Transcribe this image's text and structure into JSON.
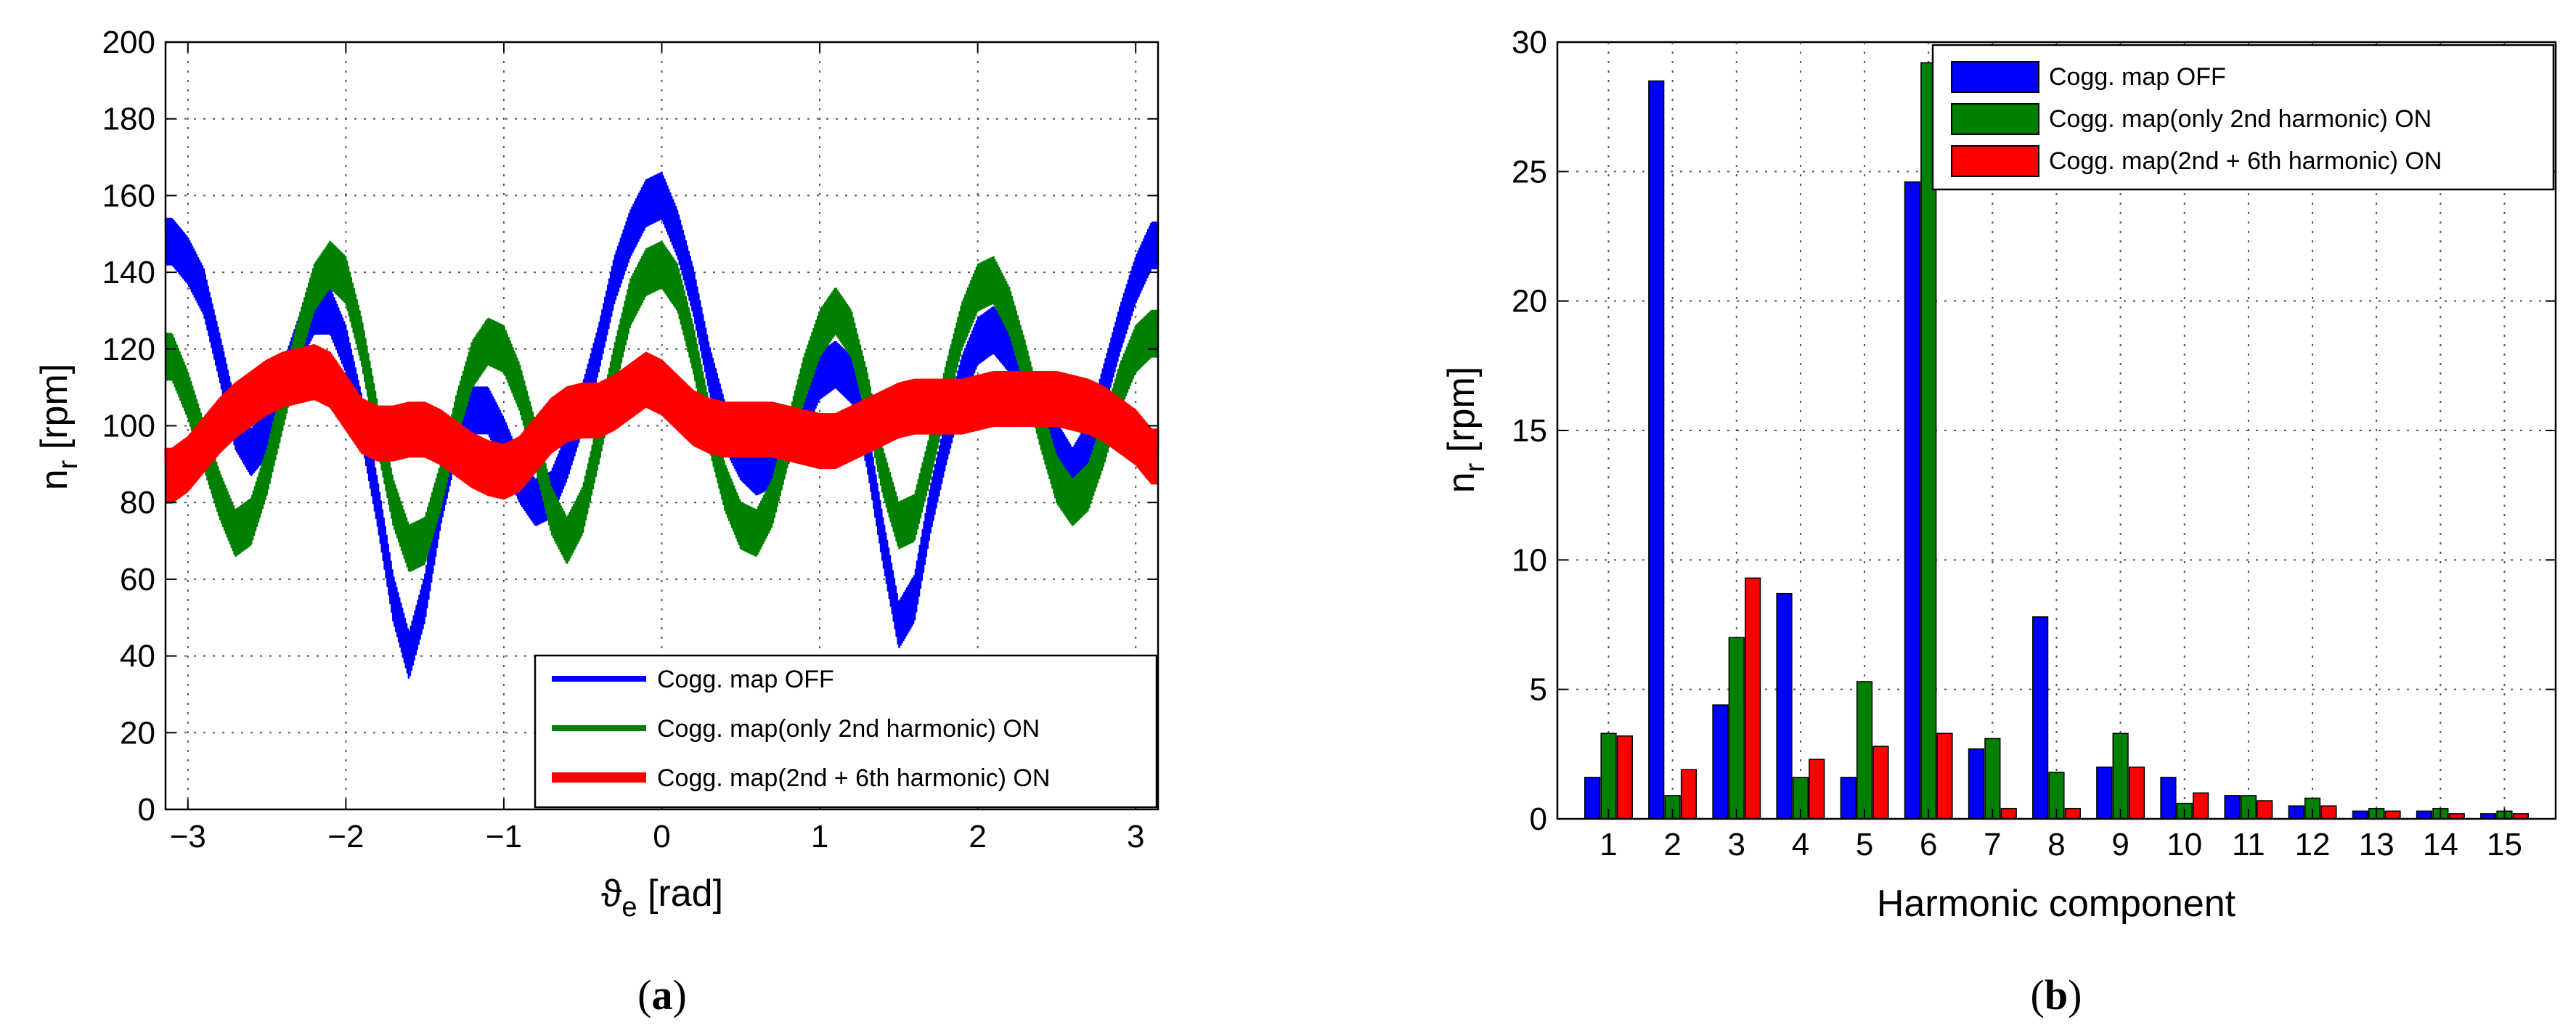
{
  "chart_data": [
    {
      "type": "line",
      "panel": "a",
      "caption": "(a)",
      "caption_letter": "a",
      "xlabel": "ϑe [rad]",
      "xlabel_symbol": "ϑ",
      "xlabel_sub": "e",
      "xlabel_unit": "[rad]",
      "ylabel": "nr [rpm]",
      "ylabel_symbol": "n",
      "ylabel_sub": "r",
      "ylabel_unit": "[rpm]",
      "xlim": [
        -3.14159,
        3.14159
      ],
      "ylim": [
        0,
        200
      ],
      "grid": true,
      "legend_position": "bottom-right",
      "xticks": [
        -3,
        -2,
        -1,
        0,
        1,
        2,
        3
      ],
      "xtick_labels": [
        "−3",
        "−2",
        "−1",
        "0",
        "1",
        "2",
        "3"
      ],
      "yticks": [
        0,
        20,
        40,
        60,
        80,
        100,
        120,
        140,
        160,
        180,
        200
      ],
      "ytick_labels": [
        "0",
        "20",
        "40",
        "60",
        "80",
        "100",
        "120",
        "140",
        "160",
        "180",
        "200"
      ],
      "series": [
        {
          "name": "Cogg. map OFF",
          "color": "#0000ff",
          "band": 12,
          "x": [
            -3.1,
            -3.0,
            -2.9,
            -2.8,
            -2.7,
            -2.6,
            -2.5,
            -2.4,
            -2.3,
            -2.2,
            -2.1,
            -2.0,
            -1.9,
            -1.8,
            -1.7,
            -1.6,
            -1.5,
            -1.4,
            -1.3,
            -1.2,
            -1.1,
            -1.0,
            -0.9,
            -0.8,
            -0.7,
            -0.6,
            -0.5,
            -0.4,
            -0.3,
            -0.2,
            -0.1,
            0.0,
            0.1,
            0.2,
            0.3,
            0.4,
            0.5,
            0.6,
            0.7,
            0.8,
            0.9,
            1.0,
            1.1,
            1.2,
            1.3,
            1.4,
            1.5,
            1.6,
            1.7,
            1.8,
            1.9,
            2.0,
            2.1,
            2.2,
            2.3,
            2.4,
            2.5,
            2.6,
            2.7,
            2.8,
            2.9,
            3.0,
            3.1
          ],
          "y": [
            148,
            143,
            135,
            118,
            100,
            93,
            98,
            110,
            122,
            130,
            130,
            120,
            102,
            80,
            55,
            40,
            55,
            80,
            98,
            104,
            104,
            96,
            86,
            80,
            82,
            92,
            105,
            120,
            138,
            150,
            158,
            160,
            150,
            135,
            115,
            100,
            92,
            88,
            90,
            96,
            104,
            113,
            116,
            112,
            95,
            70,
            48,
            55,
            78,
            96,
            112,
            122,
            125,
            120,
            112,
            104,
            95,
            88,
            95,
            110,
            125,
            138,
            147
          ]
        },
        {
          "name": "Cogg. map(only 2nd harmonic) ON",
          "color": "#008000",
          "band": 12,
          "x": [
            -3.1,
            -3.0,
            -2.9,
            -2.8,
            -2.7,
            -2.6,
            -2.5,
            -2.4,
            -2.3,
            -2.2,
            -2.1,
            -2.0,
            -1.9,
            -1.8,
            -1.7,
            -1.6,
            -1.5,
            -1.4,
            -1.3,
            -1.2,
            -1.1,
            -1.0,
            -0.9,
            -0.8,
            -0.7,
            -0.6,
            -0.5,
            -0.4,
            -0.3,
            -0.2,
            -0.1,
            0.0,
            0.1,
            0.2,
            0.3,
            0.4,
            0.5,
            0.6,
            0.7,
            0.8,
            0.9,
            1.0,
            1.1,
            1.2,
            1.3,
            1.4,
            1.5,
            1.6,
            1.7,
            1.8,
            1.9,
            2.0,
            2.1,
            2.2,
            2.3,
            2.4,
            2.5,
            2.6,
            2.7,
            2.8,
            2.9,
            3.0,
            3.1
          ],
          "y": [
            118,
            108,
            95,
            82,
            72,
            75,
            88,
            105,
            122,
            136,
            142,
            138,
            122,
            100,
            80,
            68,
            70,
            84,
            102,
            116,
            122,
            120,
            110,
            95,
            78,
            70,
            78,
            96,
            115,
            132,
            140,
            142,
            136,
            120,
            100,
            84,
            74,
            72,
            80,
            96,
            112,
            124,
            130,
            124,
            108,
            88,
            74,
            76,
            92,
            110,
            126,
            136,
            138,
            130,
            116,
            100,
            86,
            80,
            84,
            96,
            110,
            120,
            124
          ]
        },
        {
          "name": "Cogg. map(2nd + 6th harmonic) ON",
          "color": "#ff0000",
          "band": 14,
          "x": [
            -3.1,
            -3.0,
            -2.9,
            -2.8,
            -2.7,
            -2.6,
            -2.5,
            -2.4,
            -2.3,
            -2.2,
            -2.1,
            -2.0,
            -1.9,
            -1.8,
            -1.7,
            -1.6,
            -1.5,
            -1.4,
            -1.3,
            -1.2,
            -1.1,
            -1.0,
            -0.9,
            -0.8,
            -0.7,
            -0.6,
            -0.5,
            -0.4,
            -0.3,
            -0.2,
            -0.1,
            0.0,
            0.1,
            0.2,
            0.3,
            0.4,
            0.5,
            0.6,
            0.7,
            0.8,
            0.9,
            1.0,
            1.1,
            1.2,
            1.3,
            1.4,
            1.5,
            1.6,
            1.7,
            1.8,
            1.9,
            2.0,
            2.1,
            2.2,
            2.3,
            2.4,
            2.5,
            2.6,
            2.7,
            2.8,
            2.9,
            3.0,
            3.1
          ],
          "y": [
            87,
            90,
            95,
            100,
            104,
            107,
            110,
            112,
            113,
            114,
            112,
            106,
            100,
            98,
            98,
            99,
            99,
            97,
            94,
            91,
            89,
            88,
            90,
            95,
            100,
            103,
            104,
            104,
            106,
            109,
            112,
            110,
            106,
            102,
            100,
            99,
            99,
            99,
            99,
            98,
            97,
            96,
            96,
            98,
            100,
            102,
            104,
            105,
            105,
            105,
            105,
            106,
            107,
            107,
            107,
            107,
            107,
            106,
            105,
            103,
            100,
            97,
            92
          ]
        }
      ]
    },
    {
      "type": "bar",
      "panel": "b",
      "caption": "(b)",
      "caption_letter": "b",
      "xlabel": "Harmonic component",
      "ylabel": "nr [rpm]",
      "ylabel_symbol": "n",
      "ylabel_sub": "r",
      "ylabel_unit": "[rpm]",
      "ylim": [
        0,
        30
      ],
      "grid": true,
      "legend_position": "top-right",
      "categories": [
        "1",
        "2",
        "3",
        "4",
        "5",
        "6",
        "7",
        "8",
        "9",
        "10",
        "11",
        "12",
        "13",
        "14",
        "15"
      ],
      "yticks": [
        0,
        5,
        10,
        15,
        20,
        25,
        30
      ],
      "ytick_labels": [
        "0",
        "5",
        "10",
        "15",
        "20",
        "25",
        "30"
      ],
      "series": [
        {
          "name": "Cogg. map OFF",
          "color": "#0000ff",
          "values": [
            1.6,
            28.5,
            4.4,
            8.7,
            1.6,
            24.6,
            2.7,
            7.8,
            2.0,
            1.6,
            0.9,
            0.5,
            0.3,
            0.3,
            0.2
          ]
        },
        {
          "name": "Cogg. map(only 2nd harmonic) ON",
          "color": "#008000",
          "values": [
            3.3,
            0.9,
            7.0,
            1.6,
            5.3,
            29.2,
            3.1,
            1.8,
            3.3,
            0.6,
            0.9,
            0.8,
            0.4,
            0.4,
            0.3
          ]
        },
        {
          "name": "Cogg. map(2nd + 6th harmonic) ON",
          "color": "#ff0000",
          "values": [
            3.2,
            1.9,
            9.3,
            2.3,
            2.8,
            3.3,
            0.4,
            0.4,
            2.0,
            1.0,
            0.7,
            0.5,
            0.3,
            0.2,
            0.2
          ]
        }
      ]
    }
  ]
}
